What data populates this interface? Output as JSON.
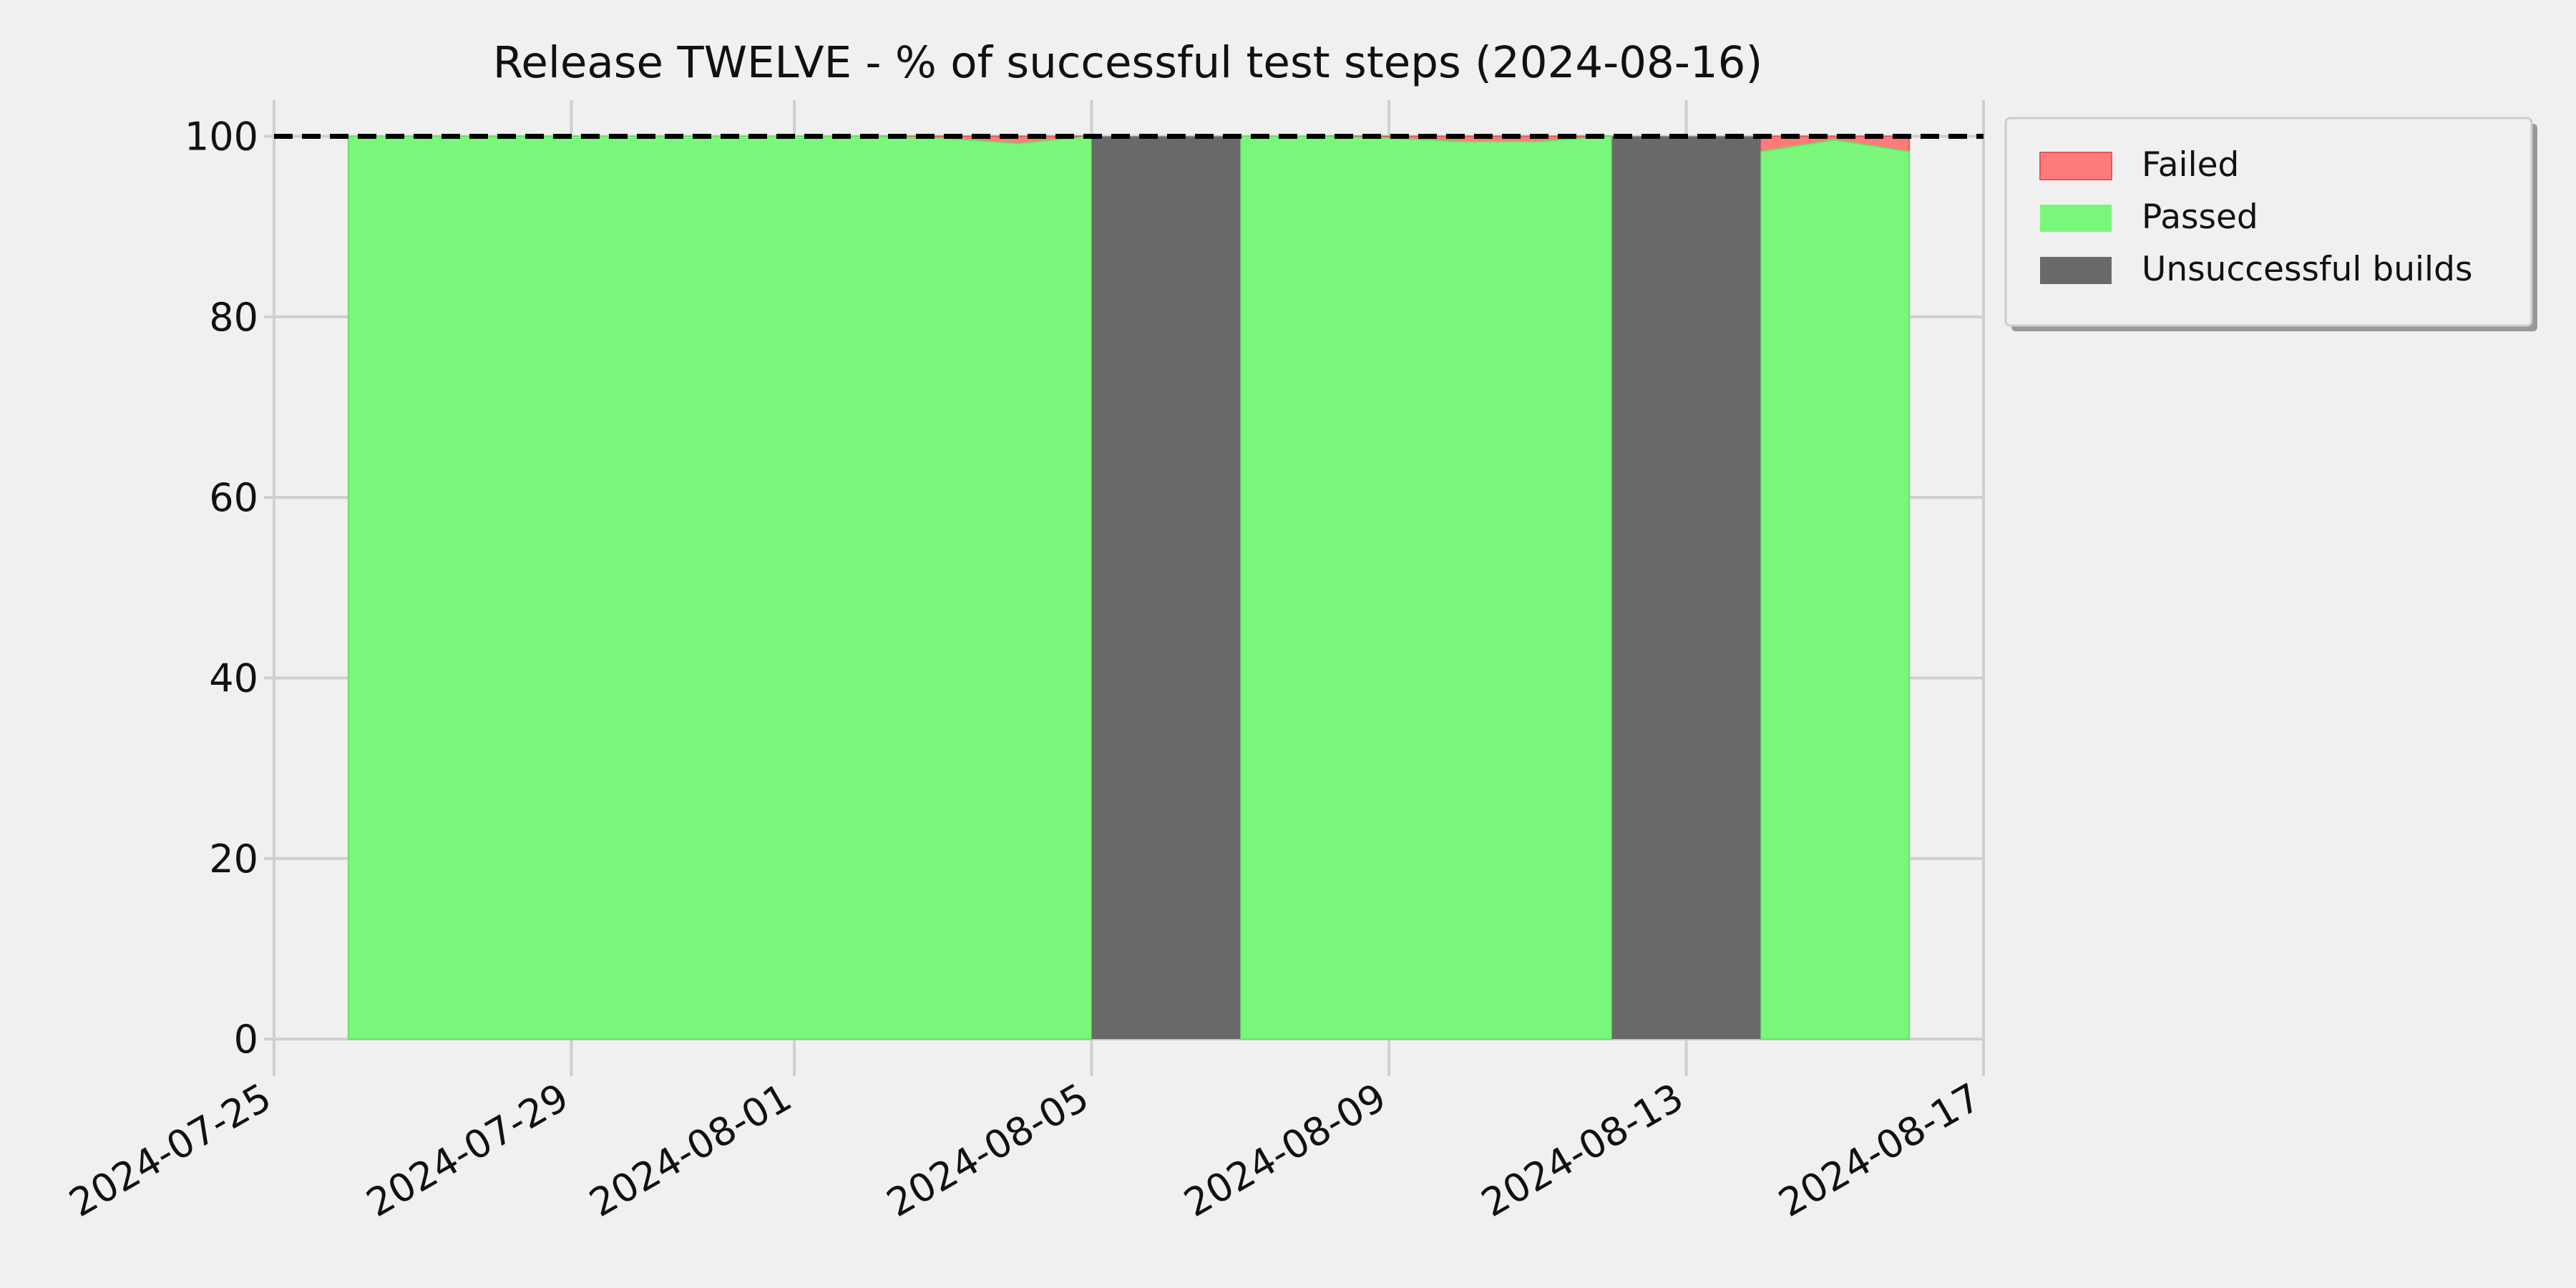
{
  "chart_data": {
    "type": "area",
    "title": "Release TWELVE - % of successful test steps (2024-08-16)",
    "xlabel": "",
    "ylabel": "",
    "x_type": "date",
    "xlim": [
      "2024-07-25",
      "2024-08-17"
    ],
    "ylim": [
      -3,
      104
    ],
    "x_ticks": [
      "2024-07-25",
      "2024-07-29",
      "2024-08-01",
      "2024-08-05",
      "2024-08-09",
      "2024-08-13",
      "2024-08-17"
    ],
    "y_ticks": [
      0,
      20,
      40,
      60,
      80,
      100
    ],
    "grid": true,
    "legend_position": "upper-right-outside",
    "reference_line": {
      "y": 100,
      "style": "dashed",
      "color": "#000000"
    },
    "series": [
      {
        "name": "Passed",
        "color": "#7af77a",
        "points": [
          {
            "x": "2024-07-26",
            "y": 100
          },
          {
            "x": "2024-07-27",
            "y": 100
          },
          {
            "x": "2024-07-28",
            "y": 100
          },
          {
            "x": "2024-07-29",
            "y": 100
          },
          {
            "x": "2024-07-30",
            "y": 100
          },
          {
            "x": "2024-07-31",
            "y": 100
          },
          {
            "x": "2024-08-01",
            "y": 100
          },
          {
            "x": "2024-08-02",
            "y": 100
          },
          {
            "x": "2024-08-03",
            "y": 99.8
          },
          {
            "x": "2024-08-04",
            "y": 99.2
          },
          {
            "x": "2024-08-05",
            "y": 100
          },
          {
            "x": "2024-08-07",
            "y": 100
          },
          {
            "x": "2024-08-08",
            "y": 100
          },
          {
            "x": "2024-08-09",
            "y": 99.8
          },
          {
            "x": "2024-08-10",
            "y": 99.4
          },
          {
            "x": "2024-08-11",
            "y": 99.4
          },
          {
            "x": "2024-08-12",
            "y": 100
          },
          {
            "x": "2024-08-14",
            "y": 98.3
          },
          {
            "x": "2024-08-15",
            "y": 99.6
          },
          {
            "x": "2024-08-16",
            "y": 98.3
          }
        ]
      },
      {
        "name": "Failed",
        "color": "#ff7b7b",
        "fills_to": 100
      },
      {
        "name": "Unsuccessful builds",
        "color": "#696969",
        "spans": [
          {
            "start": "2024-08-05",
            "end": "2024-08-07"
          },
          {
            "start": "2024-08-12",
            "end": "2024-08-14"
          }
        ]
      }
    ]
  }
}
